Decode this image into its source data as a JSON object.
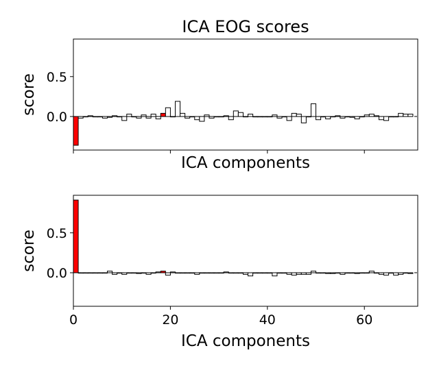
{
  "chart_data": [
    {
      "type": "bar",
      "title": "ICA EOG scores",
      "xlabel": "ICA components",
      "ylabel": "score",
      "xlim": [
        0,
        71
      ],
      "ylim": [
        -0.42,
        0.97
      ],
      "yticks": [
        0.0,
        0.5
      ],
      "ytick_labels": [
        "0.0",
        "0.5"
      ],
      "xticks": [
        0,
        20,
        40,
        60
      ],
      "xtick_labels": [],
      "highlight_color": "#ff0000",
      "bar_color": "#ffffff",
      "highlighted_components": [
        0,
        18,
        20
      ],
      "values": [
        -0.36,
        -0.02,
        0.0,
        0.01,
        0.0,
        0.0,
        -0.02,
        -0.01,
        0.01,
        0.0,
        -0.05,
        0.03,
        0.0,
        -0.02,
        0.02,
        -0.02,
        0.03,
        -0.03,
        0.04,
        0.11,
        0.0,
        0.19,
        0.04,
        -0.02,
        0.0,
        -0.04,
        -0.06,
        0.02,
        -0.02,
        0.0,
        0.0,
        0.01,
        -0.04,
        0.07,
        0.05,
        0.0,
        0.03,
        0.0,
        0.0,
        0.0,
        0.0,
        0.02,
        -0.02,
        0.0,
        -0.05,
        0.04,
        0.03,
        -0.08,
        0.0,
        0.16,
        -0.04,
        0.0,
        -0.03,
        0.0,
        0.01,
        -0.02,
        0.0,
        -0.01,
        -0.03,
        0.0,
        0.02,
        0.03,
        0.01,
        -0.04,
        -0.05,
        0.0,
        0.0,
        0.04,
        0.03,
        0.03
      ]
    },
    {
      "type": "bar",
      "title": "",
      "xlabel": "ICA components",
      "ylabel": "score",
      "xlim": [
        0,
        71
      ],
      "ylim": [
        -0.42,
        0.97
      ],
      "yticks": [
        0.0,
        0.5
      ],
      "ytick_labels": [
        "0.0",
        "0.5"
      ],
      "xticks": [
        0,
        20,
        40,
        60
      ],
      "xtick_labels": [
        "0",
        "20",
        "40",
        "60"
      ],
      "highlight_color": "#ff0000",
      "bar_color": "#ffffff",
      "highlighted_components": [
        0,
        18
      ],
      "values": [
        0.91,
        0.0,
        0.0,
        0.0,
        0.0,
        0.0,
        0.0,
        0.02,
        -0.02,
        0.0,
        -0.02,
        0.0,
        0.0,
        -0.01,
        0.0,
        -0.02,
        0.0,
        0.01,
        0.02,
        -0.03,
        0.01,
        0.0,
        0.0,
        0.0,
        0.0,
        -0.02,
        0.0,
        0.0,
        0.0,
        0.0,
        0.0,
        0.01,
        0.0,
        0.0,
        0.0,
        -0.02,
        -0.04,
        0.0,
        0.0,
        0.0,
        0.0,
        -0.04,
        0.0,
        0.0,
        -0.02,
        -0.03,
        -0.02,
        -0.02,
        -0.02,
        0.02,
        0.0,
        0.0,
        -0.01,
        -0.01,
        0.0,
        -0.02,
        0.0,
        0.0,
        -0.01,
        0.0,
        0.0,
        0.02,
        0.0,
        -0.02,
        -0.03,
        0.0,
        -0.03,
        -0.02,
        0.0,
        -0.01
      ]
    }
  ]
}
